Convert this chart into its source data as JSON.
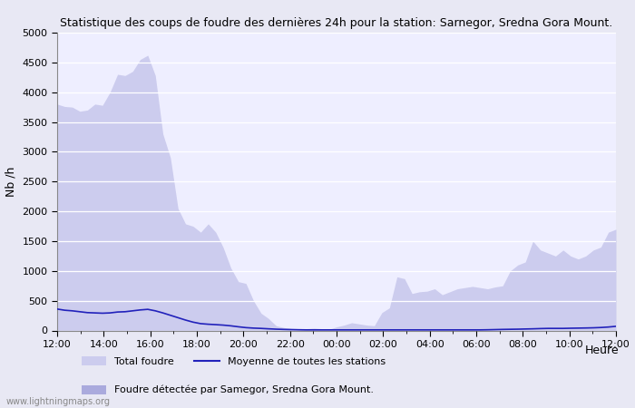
{
  "title": "Statistique des coups de foudre des dernières 24h pour la station: Sarnegor, Sredna Gora Mount.",
  "xlabel": "Heure",
  "ylabel": "Nb /h",
  "ylim": [
    0,
    5000
  ],
  "yticks": [
    0,
    500,
    1000,
    1500,
    2000,
    2500,
    3000,
    3500,
    4000,
    4500,
    5000
  ],
  "xtick_labels": [
    "12:00",
    "14:00",
    "16:00",
    "18:00",
    "20:00",
    "22:00",
    "00:00",
    "02:00",
    "04:00",
    "06:00",
    "08:00",
    "10:00",
    "12:00"
  ],
  "bg_color": "#e8e8f4",
  "plot_bg_color": "#eeeeff",
  "fill_total_color": "#ccccee",
  "fill_detected_color": "#aaaadd",
  "line_color": "#2222bb",
  "watermark": "www.lightningmaps.org",
  "total_foudre": [
    3800,
    3760,
    3750,
    3680,
    3700,
    3800,
    3780,
    4000,
    4300,
    4280,
    4350,
    4550,
    4620,
    4280,
    3300,
    2900,
    2050,
    1790,
    1750,
    1650,
    1790,
    1650,
    1390,
    1050,
    820,
    790,
    500,
    290,
    200,
    80,
    50,
    30,
    20,
    30,
    40,
    30,
    20,
    60,
    90,
    130,
    110,
    90,
    80,
    300,
    380,
    900,
    870,
    620,
    650,
    660,
    700,
    600,
    650,
    700,
    720,
    740,
    720,
    700,
    730,
    750,
    1000,
    1100,
    1150,
    1500,
    1350,
    1300,
    1250,
    1350,
    1250,
    1200,
    1250,
    1350,
    1400,
    1650,
    1700
  ],
  "detected_foudre": [
    0,
    0,
    0,
    0,
    0,
    0,
    0,
    0,
    0,
    0,
    0,
    0,
    0,
    0,
    0,
    0,
    0,
    0,
    0,
    0,
    0,
    0,
    0,
    0,
    0,
    0,
    0,
    0,
    0,
    0,
    0,
    0,
    0,
    0,
    0,
    0,
    0,
    0,
    0,
    0,
    0,
    0,
    0,
    0,
    0,
    0,
    0,
    0,
    0,
    0,
    0,
    0,
    0,
    0,
    0,
    0,
    0,
    0,
    0,
    0,
    0,
    0,
    0,
    0,
    0,
    0,
    0,
    0,
    0,
    0,
    0,
    0,
    0,
    0,
    0
  ],
  "moyenne": [
    360,
    340,
    330,
    315,
    300,
    295,
    290,
    295,
    310,
    315,
    330,
    345,
    355,
    330,
    295,
    255,
    215,
    175,
    140,
    115,
    105,
    98,
    90,
    78,
    62,
    48,
    40,
    35,
    28,
    22,
    18,
    15,
    12,
    10,
    10,
    10,
    10,
    10,
    10,
    10,
    10,
    10,
    10,
    10,
    10,
    10,
    10,
    10,
    10,
    10,
    10,
    10,
    10,
    10,
    10,
    10,
    10,
    12,
    15,
    18,
    20,
    22,
    25,
    28,
    32,
    35,
    35,
    35,
    38,
    40,
    42,
    45,
    50,
    58,
    70
  ]
}
